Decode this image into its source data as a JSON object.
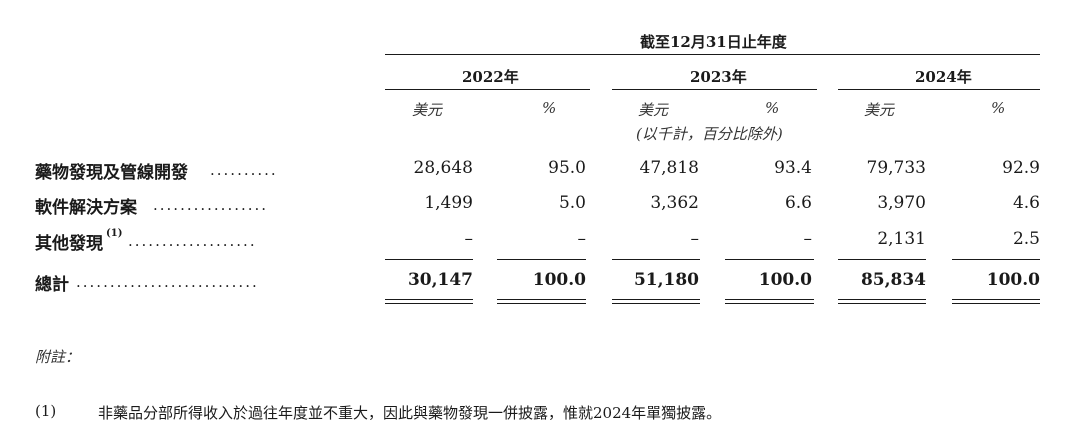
{
  "header": {
    "period": "截至12月31日止年度",
    "years": [
      "2022年",
      "2023年",
      "2024年"
    ],
    "unit_currency": "美元",
    "unit_percent": "%",
    "unit_note": "(以千計，百分比除外)"
  },
  "rows": [
    {
      "label": "藥物發現及管線開發",
      "dots": "..........",
      "values": [
        "28,648",
        "95.0",
        "47,818",
        "93.4",
        "79,733",
        "92.9"
      ]
    },
    {
      "label": "軟件解決方案",
      "dots": ".................",
      "values": [
        "1,499",
        "5.0",
        "3,362",
        "6.6",
        "3,970",
        "4.6"
      ]
    },
    {
      "label": "其他發現",
      "footnote_mark": "(1)",
      "dots": "...................",
      "values": [
        "–",
        "–",
        "–",
        "–",
        "2,131",
        "2.5"
      ]
    },
    {
      "label": "總計",
      "dots": "...........................",
      "values": [
        "30,147",
        "100.0",
        "51,180",
        "100.0",
        "85,834",
        "100.0"
      ]
    }
  ],
  "notes": {
    "title": "附註：",
    "items": [
      {
        "marker": "(1)",
        "text": "非藥品分部所得收入於過往年度並不重大，因此與藥物發現一併披露，惟就2024年單獨披露。"
      }
    ]
  }
}
